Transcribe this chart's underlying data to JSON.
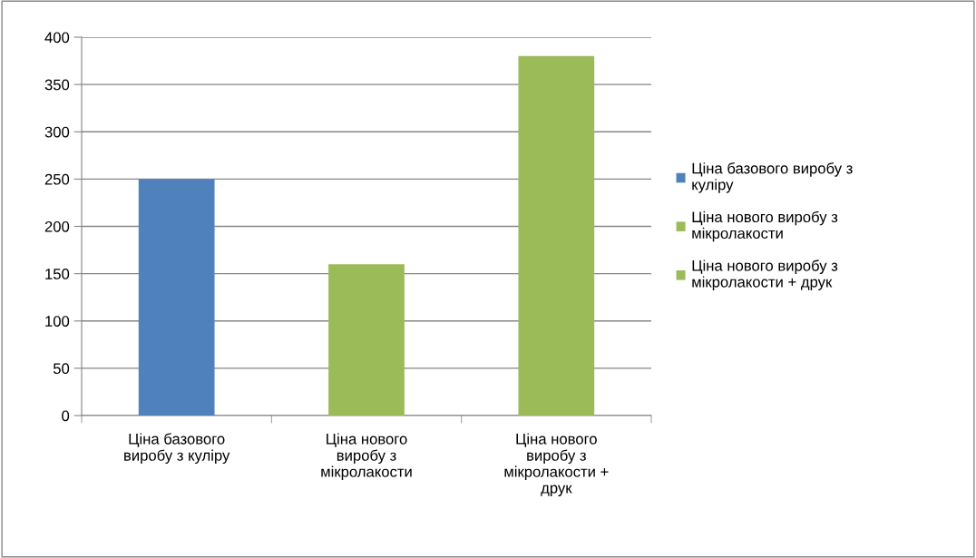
{
  "chart_data": {
    "type": "bar",
    "categories": [
      "Ціна базового виробу з куліру",
      "Ціна нового виробу з мікролакости",
      "Ціна нового виробу з мікролакости + друк"
    ],
    "series": [
      {
        "name": "Ціна базового виробу з куліру",
        "color": "#4f81bd",
        "values": [
          250,
          null,
          null
        ]
      },
      {
        "name": "Ціна нового виробу з мікролакости",
        "color": "#9bbb59",
        "values": [
          null,
          160,
          null
        ]
      },
      {
        "name": "Ціна нового виробу з мікролакости + друк",
        "color": "#9bbb59",
        "values": [
          null,
          null,
          380
        ]
      }
    ],
    "ylim": [
      0,
      400
    ],
    "yticks": [
      0,
      50,
      100,
      150,
      200,
      250,
      300,
      350,
      400
    ],
    "grid": "y",
    "legend": "right"
  }
}
